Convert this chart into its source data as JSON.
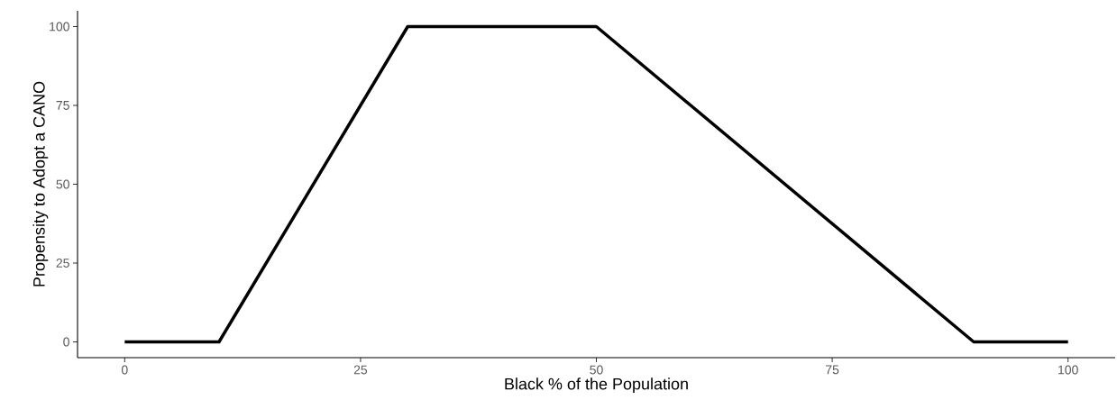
{
  "chart_data": {
    "type": "line",
    "xlabel": "Black % of the Population",
    "ylabel": "Propensity to Adopt a CANO",
    "x": [
      0,
      10,
      30,
      50,
      90,
      100
    ],
    "values": [
      0,
      0,
      100,
      100,
      0,
      0
    ],
    "color": "#000000",
    "xlim": [
      -5,
      105
    ],
    "ylim": [
      -5,
      105
    ],
    "xticks": [
      0,
      25,
      50,
      75,
      100
    ],
    "yticks": [
      0,
      25,
      50,
      75,
      100
    ]
  }
}
